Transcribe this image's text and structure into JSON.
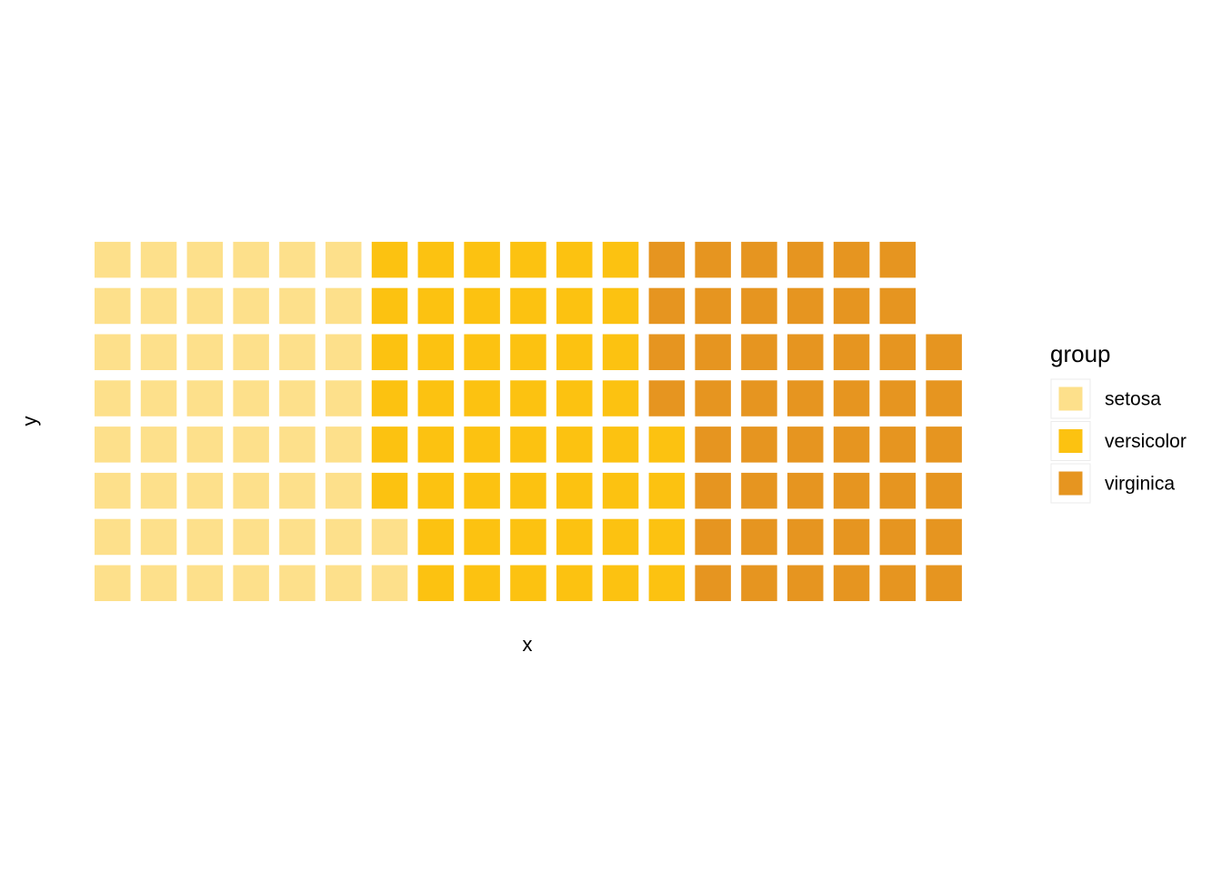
{
  "chart_data": {
    "type": "waffle",
    "xlabel": "x",
    "ylabel": "y",
    "rows": 8,
    "fill_order": "column-wise, bottom to top",
    "legend": {
      "title": "group",
      "position": "right"
    },
    "grid": false,
    "series": [
      {
        "name": "setosa",
        "value": 50,
        "color": "#FDE08B"
      },
      {
        "name": "versicolor",
        "value": 50,
        "color": "#FCC211"
      },
      {
        "name": "virginica",
        "value": 50,
        "color": "#E69520"
      }
    ]
  }
}
